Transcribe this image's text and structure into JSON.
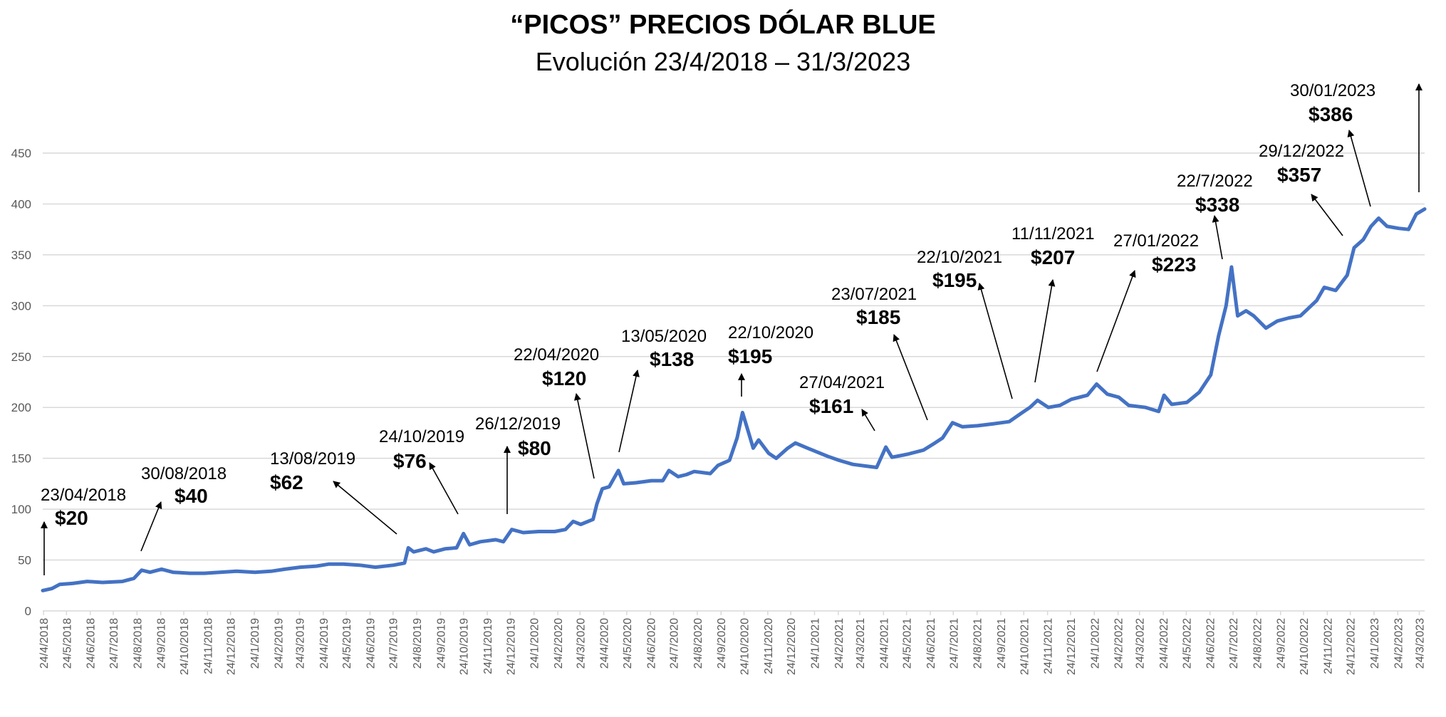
{
  "title": "“PICOS” PRECIOS DÓLAR BLUE",
  "subtitle": "Evolución 23/4/2018 – 31/3/2023",
  "colors": {
    "line": "#4472c4",
    "grid": "#d9d9d9",
    "text": "#000000",
    "axis_text": "#595959"
  },
  "chart_data": {
    "type": "line",
    "title": "“PICOS” PRECIOS DÓLAR BLUE",
    "subtitle": "Evolución 23/4/2018 – 31/3/2023",
    "xlabel": "",
    "ylabel": "",
    "ylim": [
      0,
      450
    ],
    "yticks": [
      0,
      50,
      100,
      150,
      200,
      250,
      300,
      350,
      400,
      450
    ],
    "xlim": [
      "2018-04-23",
      "2023-03-31"
    ],
    "grid": true,
    "legend": "none",
    "xticks": [
      {
        "date": "2018-04-24",
        "label": "24/4/2018"
      },
      {
        "date": "2018-05-24",
        "label": "24/5/2018"
      },
      {
        "date": "2018-06-24",
        "label": "24/6/2018"
      },
      {
        "date": "2018-07-24",
        "label": "24/7/2018"
      },
      {
        "date": "2018-08-24",
        "label": "24/8/2018"
      },
      {
        "date": "2018-09-24",
        "label": "24/9/2018"
      },
      {
        "date": "2018-10-24",
        "label": "24/10/2018"
      },
      {
        "date": "2018-11-24",
        "label": "24/11/2018"
      },
      {
        "date": "2018-12-24",
        "label": "24/12/2018"
      },
      {
        "date": "2019-01-24",
        "label": "24/1/2019"
      },
      {
        "date": "2019-02-24",
        "label": "24/2/2019"
      },
      {
        "date": "2019-03-24",
        "label": "24/3/2019"
      },
      {
        "date": "2019-04-24",
        "label": "24/4/2019"
      },
      {
        "date": "2019-05-24",
        "label": "24/5/2019"
      },
      {
        "date": "2019-06-24",
        "label": "24/6/2019"
      },
      {
        "date": "2019-07-24",
        "label": "24/7/2019"
      },
      {
        "date": "2019-08-24",
        "label": "24/8/2019"
      },
      {
        "date": "2019-09-24",
        "label": "24/9/2019"
      },
      {
        "date": "2019-10-24",
        "label": "24/10/2019"
      },
      {
        "date": "2019-11-24",
        "label": "24/11/2019"
      },
      {
        "date": "2019-12-24",
        "label": "24/12/2019"
      },
      {
        "date": "2020-01-24",
        "label": "24/1/2020"
      },
      {
        "date": "2020-02-24",
        "label": "24/2/2020"
      },
      {
        "date": "2020-03-24",
        "label": "24/3/2020"
      },
      {
        "date": "2020-04-24",
        "label": "24/4/2020"
      },
      {
        "date": "2020-05-24",
        "label": "24/5/2020"
      },
      {
        "date": "2020-06-24",
        "label": "24/6/2020"
      },
      {
        "date": "2020-07-24",
        "label": "24/7/2020"
      },
      {
        "date": "2020-08-24",
        "label": "24/8/2020"
      },
      {
        "date": "2020-09-24",
        "label": "24/9/2020"
      },
      {
        "date": "2020-10-24",
        "label": "24/10/2020"
      },
      {
        "date": "2020-11-24",
        "label": "24/11/2020"
      },
      {
        "date": "2020-12-24",
        "label": "24/12/2020"
      },
      {
        "date": "2021-01-24",
        "label": "24/1/2021"
      },
      {
        "date": "2021-02-24",
        "label": "24/2/2021"
      },
      {
        "date": "2021-03-24",
        "label": "24/3/2021"
      },
      {
        "date": "2021-04-24",
        "label": "24/4/2021"
      },
      {
        "date": "2021-05-24",
        "label": "24/5/2021"
      },
      {
        "date": "2021-06-24",
        "label": "24/6/2021"
      },
      {
        "date": "2021-07-24",
        "label": "24/7/2021"
      },
      {
        "date": "2021-08-24",
        "label": "24/8/2021"
      },
      {
        "date": "2021-09-24",
        "label": "24/9/2021"
      },
      {
        "date": "2021-10-24",
        "label": "24/10/2021"
      },
      {
        "date": "2021-11-24",
        "label": "24/11/2021"
      },
      {
        "date": "2021-12-24",
        "label": "24/12/2021"
      },
      {
        "date": "2022-01-24",
        "label": "24/1/2022"
      },
      {
        "date": "2022-02-24",
        "label": "24/2/2022"
      },
      {
        "date": "2022-03-24",
        "label": "24/3/2022"
      },
      {
        "date": "2022-04-24",
        "label": "24/4/2022"
      },
      {
        "date": "2022-05-24",
        "label": "24/5/2022"
      },
      {
        "date": "2022-06-24",
        "label": "24/6/2022"
      },
      {
        "date": "2022-07-24",
        "label": "24/7/2022"
      },
      {
        "date": "2022-08-24",
        "label": "24/8/2022"
      },
      {
        "date": "2022-09-24",
        "label": "24/9/2022"
      },
      {
        "date": "2022-10-24",
        "label": "24/10/2022"
      },
      {
        "date": "2022-11-24",
        "label": "24/11/2022"
      },
      {
        "date": "2022-12-24",
        "label": "24/12/2022"
      },
      {
        "date": "2023-01-24",
        "label": "24/1/2023"
      },
      {
        "date": "2023-02-24",
        "label": "24/2/2023"
      },
      {
        "date": "2023-03-24",
        "label": "24/3/2023"
      }
    ],
    "series": [
      {
        "points": [
          [
            "2018-04-23",
            20
          ],
          [
            "2018-05-05",
            22
          ],
          [
            "2018-05-15",
            26
          ],
          [
            "2018-06-01",
            27
          ],
          [
            "2018-06-20",
            29
          ],
          [
            "2018-07-10",
            28
          ],
          [
            "2018-08-05",
            29
          ],
          [
            "2018-08-20",
            32
          ],
          [
            "2018-08-30",
            40
          ],
          [
            "2018-09-10",
            38
          ],
          [
            "2018-09-25",
            41
          ],
          [
            "2018-10-10",
            38
          ],
          [
            "2018-11-01",
            37
          ],
          [
            "2018-11-20",
            37
          ],
          [
            "2018-12-10",
            38
          ],
          [
            "2019-01-01",
            39
          ],
          [
            "2019-01-25",
            38
          ],
          [
            "2019-02-15",
            39
          ],
          [
            "2019-03-05",
            41
          ],
          [
            "2019-03-25",
            43
          ],
          [
            "2019-04-15",
            44
          ],
          [
            "2019-05-01",
            46
          ],
          [
            "2019-05-20",
            46
          ],
          [
            "2019-06-10",
            45
          ],
          [
            "2019-07-01",
            43
          ],
          [
            "2019-07-25",
            45
          ],
          [
            "2019-08-08",
            47
          ],
          [
            "2019-08-13",
            62
          ],
          [
            "2019-08-20",
            58
          ],
          [
            "2019-09-05",
            61
          ],
          [
            "2019-09-15",
            58
          ],
          [
            "2019-09-30",
            61
          ],
          [
            "2019-10-15",
            62
          ],
          [
            "2019-10-24",
            76
          ],
          [
            "2019-11-01",
            65
          ],
          [
            "2019-11-15",
            68
          ],
          [
            "2019-12-05",
            70
          ],
          [
            "2019-12-15",
            68
          ],
          [
            "2019-12-26",
            80
          ],
          [
            "2020-01-10",
            77
          ],
          [
            "2020-01-30",
            78
          ],
          [
            "2020-02-20",
            78
          ],
          [
            "2020-03-05",
            80
          ],
          [
            "2020-03-15",
            88
          ],
          [
            "2020-03-25",
            85
          ],
          [
            "2020-04-10",
            90
          ],
          [
            "2020-04-15",
            105
          ],
          [
            "2020-04-22",
            120
          ],
          [
            "2020-05-01",
            122
          ],
          [
            "2020-05-13",
            138
          ],
          [
            "2020-05-20",
            125
          ],
          [
            "2020-06-05",
            126
          ],
          [
            "2020-06-25",
            128
          ],
          [
            "2020-07-10",
            128
          ],
          [
            "2020-07-18",
            138
          ],
          [
            "2020-07-30",
            132
          ],
          [
            "2020-08-10",
            134
          ],
          [
            "2020-08-20",
            137
          ],
          [
            "2020-09-10",
            135
          ],
          [
            "2020-09-20",
            143
          ],
          [
            "2020-10-05",
            148
          ],
          [
            "2020-10-15",
            170
          ],
          [
            "2020-10-22",
            195
          ],
          [
            "2020-10-30",
            175
          ],
          [
            "2020-11-05",
            160
          ],
          [
            "2020-11-12",
            168
          ],
          [
            "2020-11-25",
            155
          ],
          [
            "2020-12-05",
            150
          ],
          [
            "2020-12-20",
            160
          ],
          [
            "2020-12-30",
            165
          ],
          [
            "2021-01-15",
            160
          ],
          [
            "2021-02-10",
            152
          ],
          [
            "2021-02-25",
            148
          ],
          [
            "2021-03-15",
            144
          ],
          [
            "2021-04-05",
            142
          ],
          [
            "2021-04-15",
            141
          ],
          [
            "2021-04-27",
            161
          ],
          [
            "2021-05-05",
            151
          ],
          [
            "2021-05-25",
            154
          ],
          [
            "2021-06-15",
            158
          ],
          [
            "2021-06-30",
            165
          ],
          [
            "2021-07-10",
            170
          ],
          [
            "2021-07-23",
            185
          ],
          [
            "2021-08-05",
            181
          ],
          [
            "2021-08-25",
            182
          ],
          [
            "2021-09-15",
            184
          ],
          [
            "2021-10-05",
            186
          ],
          [
            "2021-10-22",
            195
          ],
          [
            "2021-11-01",
            200
          ],
          [
            "2021-11-11",
            207
          ],
          [
            "2021-11-25",
            200
          ],
          [
            "2021-12-10",
            202
          ],
          [
            "2021-12-25",
            208
          ],
          [
            "2022-01-15",
            212
          ],
          [
            "2022-01-27",
            223
          ],
          [
            "2022-02-10",
            213
          ],
          [
            "2022-02-25",
            210
          ],
          [
            "2022-03-10",
            202
          ],
          [
            "2022-04-01",
            200
          ],
          [
            "2022-04-18",
            196
          ],
          [
            "2022-04-25",
            212
          ],
          [
            "2022-05-05",
            203
          ],
          [
            "2022-05-25",
            205
          ],
          [
            "2022-06-10",
            215
          ],
          [
            "2022-06-25",
            232
          ],
          [
            "2022-07-05",
            270
          ],
          [
            "2022-07-15",
            300
          ],
          [
            "2022-07-22",
            338
          ],
          [
            "2022-07-30",
            290
          ],
          [
            "2022-08-10",
            295
          ],
          [
            "2022-08-20",
            290
          ],
          [
            "2022-09-05",
            278
          ],
          [
            "2022-09-20",
            285
          ],
          [
            "2022-10-05",
            288
          ],
          [
            "2022-10-20",
            290
          ],
          [
            "2022-11-10",
            305
          ],
          [
            "2022-11-20",
            318
          ],
          [
            "2022-12-05",
            315
          ],
          [
            "2022-12-20",
            330
          ],
          [
            "2022-12-29",
            357
          ],
          [
            "2023-01-10",
            365
          ],
          [
            "2023-01-20",
            378
          ],
          [
            "2023-01-30",
            386
          ],
          [
            "2023-02-10",
            378
          ],
          [
            "2023-02-25",
            376
          ],
          [
            "2023-03-10",
            375
          ],
          [
            "2023-03-20",
            390
          ],
          [
            "2023-03-31",
            395
          ]
        ]
      }
    ],
    "annotations": [
      {
        "date_label": "23/04/2018",
        "value_label": "$20"
      },
      {
        "date_label": "30/08/2018",
        "value_label": "$40"
      },
      {
        "date_label": "13/08/2019",
        "value_label": "$62"
      },
      {
        "date_label": "24/10/2019",
        "value_label": "$76"
      },
      {
        "date_label": "26/12/2019",
        "value_label": "$80"
      },
      {
        "date_label": "22/04/2020",
        "value_label": "$120"
      },
      {
        "date_label": "13/05/2020",
        "value_label": "$138"
      },
      {
        "date_label": "22/10/2020",
        "value_label": "$195"
      },
      {
        "date_label": "27/04/2021",
        "value_label": "$161"
      },
      {
        "date_label": "23/07/2021",
        "value_label": "$185"
      },
      {
        "date_label": "22/10/2021",
        "value_label": "$195"
      },
      {
        "date_label": "11/11/2021",
        "value_label": "$207"
      },
      {
        "date_label": "27/01/2022",
        "value_label": "$223"
      },
      {
        "date_label": "22/7/2022",
        "value_label": "$338"
      },
      {
        "date_label": "29/12/2022",
        "value_label": "$357"
      },
      {
        "date_label": "30/01/2023",
        "value_label": "$386"
      }
    ]
  }
}
